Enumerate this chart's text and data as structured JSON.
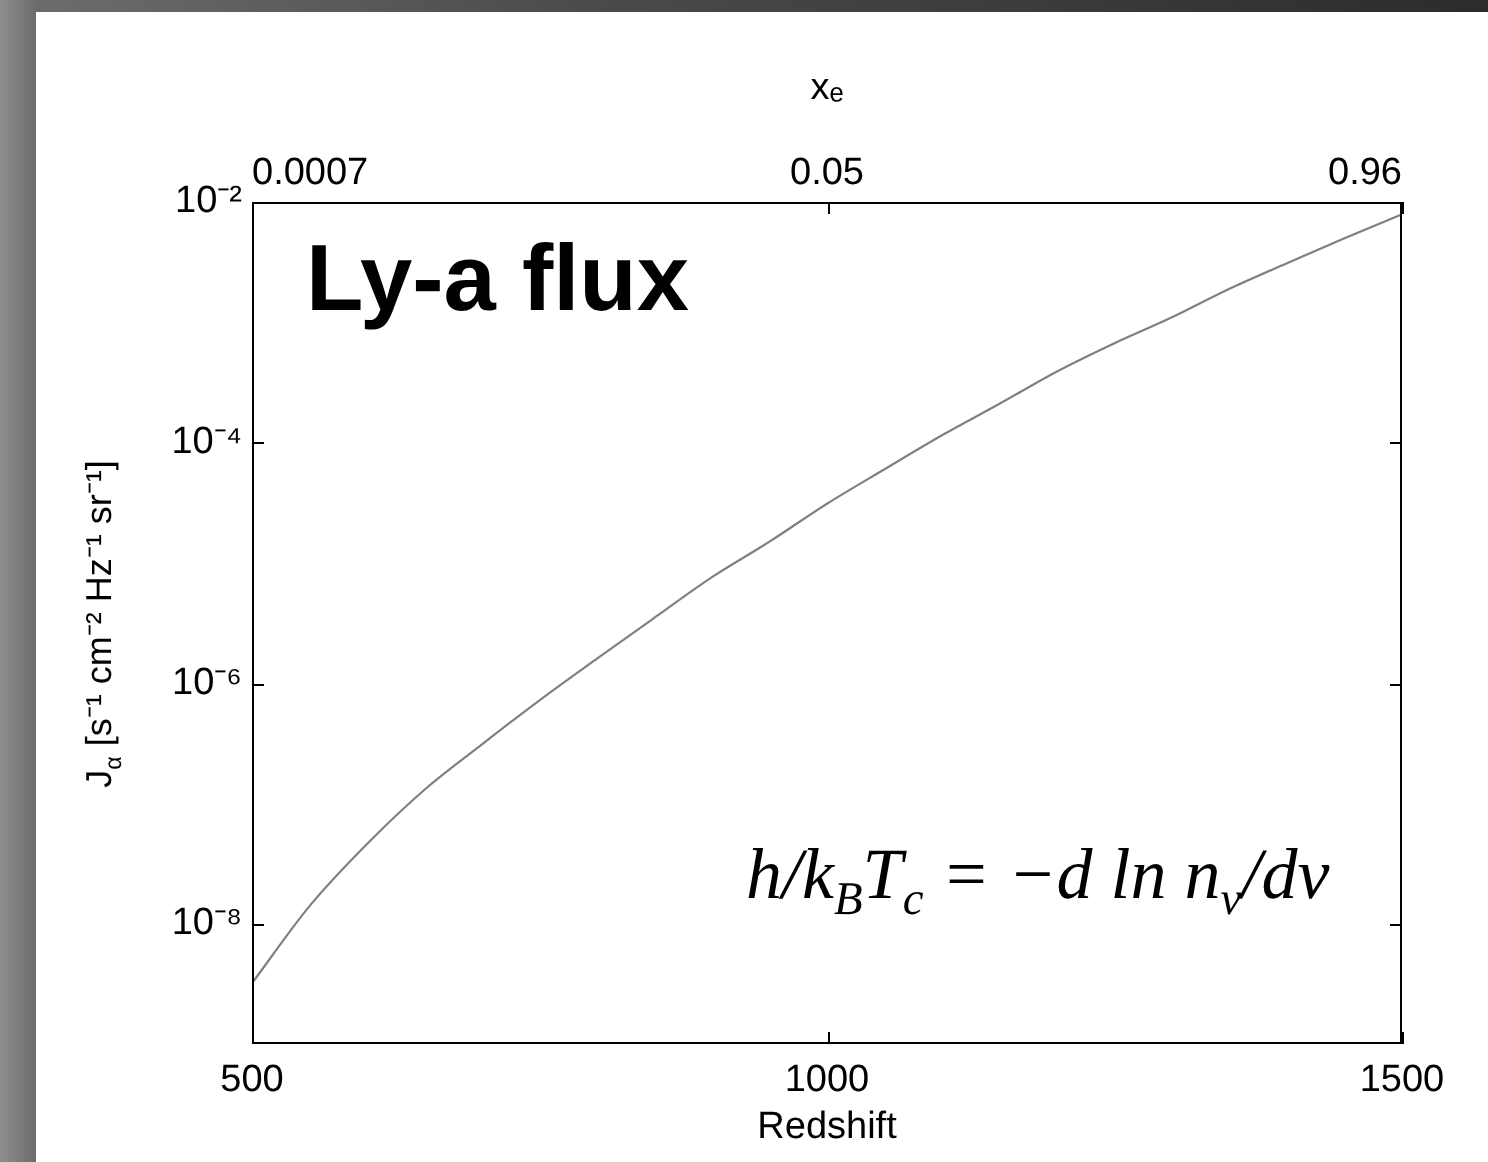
{
  "chart_data": {
    "type": "line",
    "title": "Ly-a flux",
    "xlabel": "Redshift",
    "ylabel": "J$_{α}$ [s⁻¹ cm⁻² Hz⁻¹ sr⁻¹]",
    "x2label": "xₑ",
    "annotations": [
      "0.0007",
      "0.05",
      "0.96",
      "h/k$_{B}$T$_{c}$ = −d ln n$_{ν}$/dν"
    ],
    "x": [
      500,
      550,
      600,
      650,
      700,
      750,
      800,
      850,
      900,
      950,
      1000,
      1050,
      1100,
      1150,
      1200,
      1250,
      1300,
      1350,
      1400,
      1450,
      1500
    ],
    "values": [
      3.2e-09,
      1.4e-08,
      4.6e-08,
      1.3e-07,
      3.1e-07,
      7.2e-07,
      1.6e-06,
      3.5e-06,
      7.6e-06,
      1.5e-05,
      3.1e-05,
      6e-05,
      0.000115,
      0.00021,
      0.00039,
      0.00067,
      0.0011,
      0.0019,
      0.0031,
      0.005,
      0.0079
    ],
    "color": "#808080",
    "log": true,
    "xlim": [
      500,
      1500
    ],
    "xticks": [
      500,
      1000,
      1500
    ],
    "ylim": [
      1e-09,
      0.01
    ],
    "yticks": [
      {
        "value": 1e-08,
        "label": "10⁻⁸"
      },
      {
        "value": 1e-06,
        "label": "10⁻⁶"
      },
      {
        "value": 0.0001,
        "label": "10⁻⁴"
      },
      {
        "value": 0.01,
        "label": "10⁻²"
      }
    ]
  }
}
